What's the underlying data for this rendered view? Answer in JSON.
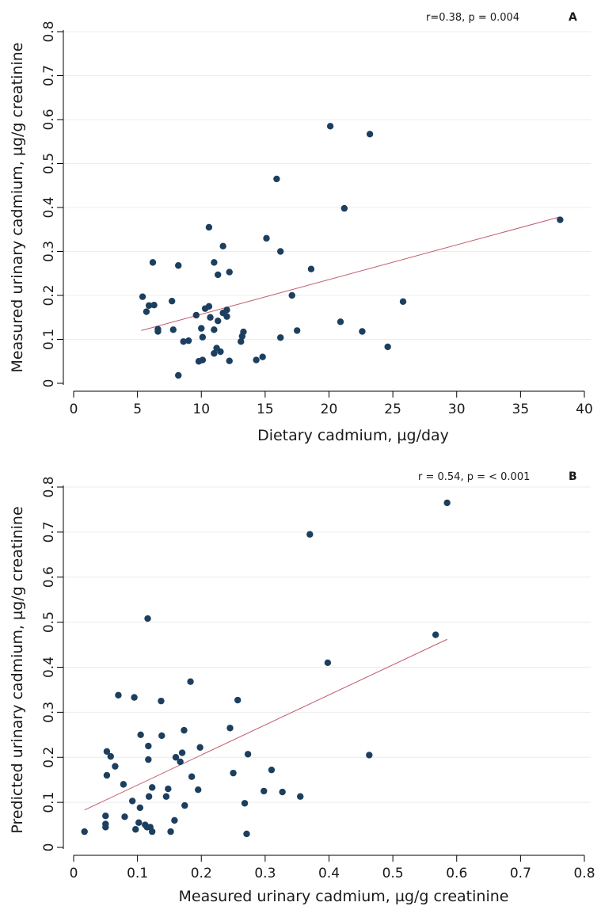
{
  "chart_data": [
    {
      "type": "scatter",
      "panel_label": "A",
      "annotation": "r=0.38, p = 0.004",
      "xlabel": "Dietary cadmium, µg/day",
      "ylabel": "Measured urinary cadmium, µg/g creatinine",
      "xlim": [
        0,
        40
      ],
      "ylim": [
        0,
        0.8
      ],
      "xticks": [
        "0",
        "5",
        "10",
        "15",
        "20",
        "25",
        "30",
        "35",
        "40"
      ],
      "yticks": [
        "0",
        "0.1",
        "0.2",
        "0.3",
        "0.4",
        "0.5",
        "0.6",
        "0.7",
        "0.8"
      ],
      "grid": true,
      "fit_line": {
        "x": [
          5.3,
          38.0
        ],
        "y": [
          0.12,
          0.378
        ]
      },
      "points": [
        {
          "x": 5.4,
          "y": 0.197
        },
        {
          "x": 5.7,
          "y": 0.163
        },
        {
          "x": 5.9,
          "y": 0.177
        },
        {
          "x": 6.2,
          "y": 0.275
        },
        {
          "x": 6.3,
          "y": 0.178
        },
        {
          "x": 6.6,
          "y": 0.123
        },
        {
          "x": 6.6,
          "y": 0.118
        },
        {
          "x": 7.7,
          "y": 0.187
        },
        {
          "x": 7.8,
          "y": 0.122
        },
        {
          "x": 8.2,
          "y": 0.018
        },
        {
          "x": 8.2,
          "y": 0.268
        },
        {
          "x": 8.6,
          "y": 0.095
        },
        {
          "x": 9.0,
          "y": 0.097
        },
        {
          "x": 9.6,
          "y": 0.155
        },
        {
          "x": 9.8,
          "y": 0.05
        },
        {
          "x": 10.0,
          "y": 0.125
        },
        {
          "x": 10.1,
          "y": 0.105
        },
        {
          "x": 10.1,
          "y": 0.053
        },
        {
          "x": 10.3,
          "y": 0.17
        },
        {
          "x": 10.6,
          "y": 0.355
        },
        {
          "x": 10.6,
          "y": 0.175
        },
        {
          "x": 10.7,
          "y": 0.15
        },
        {
          "x": 11.0,
          "y": 0.122
        },
        {
          "x": 11.0,
          "y": 0.275
        },
        {
          "x": 11.0,
          "y": 0.068
        },
        {
          "x": 11.2,
          "y": 0.08
        },
        {
          "x": 11.3,
          "y": 0.247
        },
        {
          "x": 11.3,
          "y": 0.142
        },
        {
          "x": 11.5,
          "y": 0.072
        },
        {
          "x": 11.7,
          "y": 0.312
        },
        {
          "x": 11.7,
          "y": 0.16
        },
        {
          "x": 12.0,
          "y": 0.167
        },
        {
          "x": 12.0,
          "y": 0.152
        },
        {
          "x": 12.2,
          "y": 0.253
        },
        {
          "x": 12.2,
          "y": 0.051
        },
        {
          "x": 13.1,
          "y": 0.095
        },
        {
          "x": 13.2,
          "y": 0.107
        },
        {
          "x": 13.3,
          "y": 0.117
        },
        {
          "x": 14.3,
          "y": 0.053
        },
        {
          "x": 14.8,
          "y": 0.06
        },
        {
          "x": 15.1,
          "y": 0.33
        },
        {
          "x": 15.9,
          "y": 0.465
        },
        {
          "x": 16.2,
          "y": 0.3
        },
        {
          "x": 16.2,
          "y": 0.104
        },
        {
          "x": 17.1,
          "y": 0.2
        },
        {
          "x": 17.5,
          "y": 0.12
        },
        {
          "x": 18.6,
          "y": 0.26
        },
        {
          "x": 20.1,
          "y": 0.585
        },
        {
          "x": 20.9,
          "y": 0.14
        },
        {
          "x": 21.2,
          "y": 0.398
        },
        {
          "x": 22.6,
          "y": 0.118
        },
        {
          "x": 23.2,
          "y": 0.567
        },
        {
          "x": 24.6,
          "y": 0.083
        },
        {
          "x": 25.8,
          "y": 0.186
        },
        {
          "x": 38.1,
          "y": 0.372
        }
      ]
    },
    {
      "type": "scatter",
      "panel_label": "B",
      "annotation": "r = 0.54, p = < 0.001",
      "xlabel": "Measured urinary cadmium, µg/g creatinine",
      "ylabel": "Predicted urinary cadmium, µg/g creatinine",
      "xlim": [
        0,
        0.8
      ],
      "ylim": [
        0,
        0.8
      ],
      "xticks": [
        "0",
        "0.1",
        "0.2",
        "0.3",
        "0.4",
        "0.5",
        "0.6",
        "0.7",
        "0.8"
      ],
      "yticks": [
        "0",
        "0.1",
        "0.2",
        "0.3",
        "0.4",
        "0.5",
        "0.6",
        "0.7",
        "0.8"
      ],
      "grid": true,
      "fit_line": {
        "x": [
          0.017,
          0.585
        ],
        "y": [
          0.083,
          0.462
        ]
      },
      "points": [
        {
          "x": 0.017,
          "y": 0.035
        },
        {
          "x": 0.05,
          "y": 0.07
        },
        {
          "x": 0.05,
          "y": 0.052
        },
        {
          "x": 0.05,
          "y": 0.045
        },
        {
          "x": 0.052,
          "y": 0.213
        },
        {
          "x": 0.052,
          "y": 0.16
        },
        {
          "x": 0.058,
          "y": 0.202
        },
        {
          "x": 0.065,
          "y": 0.18
        },
        {
          "x": 0.07,
          "y": 0.338
        },
        {
          "x": 0.078,
          "y": 0.14
        },
        {
          "x": 0.08,
          "y": 0.068
        },
        {
          "x": 0.092,
          "y": 0.103
        },
        {
          "x": 0.095,
          "y": 0.333
        },
        {
          "x": 0.097,
          "y": 0.04
        },
        {
          "x": 0.102,
          "y": 0.055
        },
        {
          "x": 0.104,
          "y": 0.088
        },
        {
          "x": 0.105,
          "y": 0.25
        },
        {
          "x": 0.112,
          "y": 0.05
        },
        {
          "x": 0.115,
          "y": 0.045
        },
        {
          "x": 0.116,
          "y": 0.508
        },
        {
          "x": 0.117,
          "y": 0.225
        },
        {
          "x": 0.117,
          "y": 0.195
        },
        {
          "x": 0.118,
          "y": 0.113
        },
        {
          "x": 0.12,
          "y": 0.045
        },
        {
          "x": 0.123,
          "y": 0.035
        },
        {
          "x": 0.123,
          "y": 0.133
        },
        {
          "x": 0.137,
          "y": 0.325
        },
        {
          "x": 0.138,
          "y": 0.248
        },
        {
          "x": 0.145,
          "y": 0.113
        },
        {
          "x": 0.148,
          "y": 0.13
        },
        {
          "x": 0.152,
          "y": 0.035
        },
        {
          "x": 0.158,
          "y": 0.06
        },
        {
          "x": 0.16,
          "y": 0.2
        },
        {
          "x": 0.167,
          "y": 0.19
        },
        {
          "x": 0.17,
          "y": 0.21
        },
        {
          "x": 0.173,
          "y": 0.26
        },
        {
          "x": 0.174,
          "y": 0.093
        },
        {
          "x": 0.183,
          "y": 0.368
        },
        {
          "x": 0.185,
          "y": 0.157
        },
        {
          "x": 0.195,
          "y": 0.128
        },
        {
          "x": 0.198,
          "y": 0.222
        },
        {
          "x": 0.245,
          "y": 0.265
        },
        {
          "x": 0.25,
          "y": 0.165
        },
        {
          "x": 0.257,
          "y": 0.327
        },
        {
          "x": 0.268,
          "y": 0.098
        },
        {
          "x": 0.271,
          "y": 0.03
        },
        {
          "x": 0.273,
          "y": 0.207
        },
        {
          "x": 0.298,
          "y": 0.125
        },
        {
          "x": 0.31,
          "y": 0.172
        },
        {
          "x": 0.327,
          "y": 0.123
        },
        {
          "x": 0.355,
          "y": 0.113
        },
        {
          "x": 0.37,
          "y": 0.695
        },
        {
          "x": 0.398,
          "y": 0.41
        },
        {
          "x": 0.463,
          "y": 0.205
        },
        {
          "x": 0.567,
          "y": 0.472
        },
        {
          "x": 0.585,
          "y": 0.765
        }
      ]
    }
  ]
}
